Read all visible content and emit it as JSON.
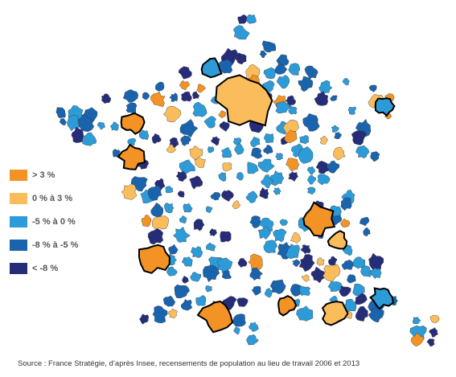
{
  "legend": {
    "items": [
      {
        "label": "> 3 %",
        "color": "#f39325"
      },
      {
        "label": "0 % à 3 %",
        "color": "#fbbd5c"
      },
      {
        "label": "-5 % à 0 %",
        "color": "#2c9bd8"
      },
      {
        "label": "-8 % à -5 %",
        "color": "#1a63ad"
      },
      {
        "label": "< -8 %",
        "color": "#262d78"
      }
    ]
  },
  "source": "Source : France Stratégie, d’après Insee, recensements de population au lieu de travail 2006 et 2013"
}
